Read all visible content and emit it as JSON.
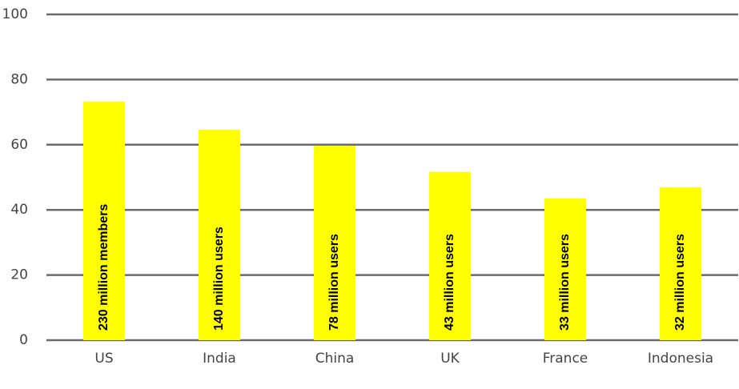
{
  "chart_data": {
    "type": "bar",
    "categories": [
      "US",
      "India",
      "China",
      "UK",
      "France",
      "Indonesia"
    ],
    "values": [
      73.2,
      64.6,
      59.7,
      51.6,
      43.5,
      46.9
    ],
    "annotations": [
      "230 million members",
      "140 million users",
      "78 million users",
      "43 million users",
      "33 million users",
      "32 million users"
    ],
    "color": "#ffff00",
    "ylim": [
      0,
      100
    ],
    "yticks": [
      0,
      20,
      40,
      60,
      80,
      100
    ],
    "grid": true
  }
}
